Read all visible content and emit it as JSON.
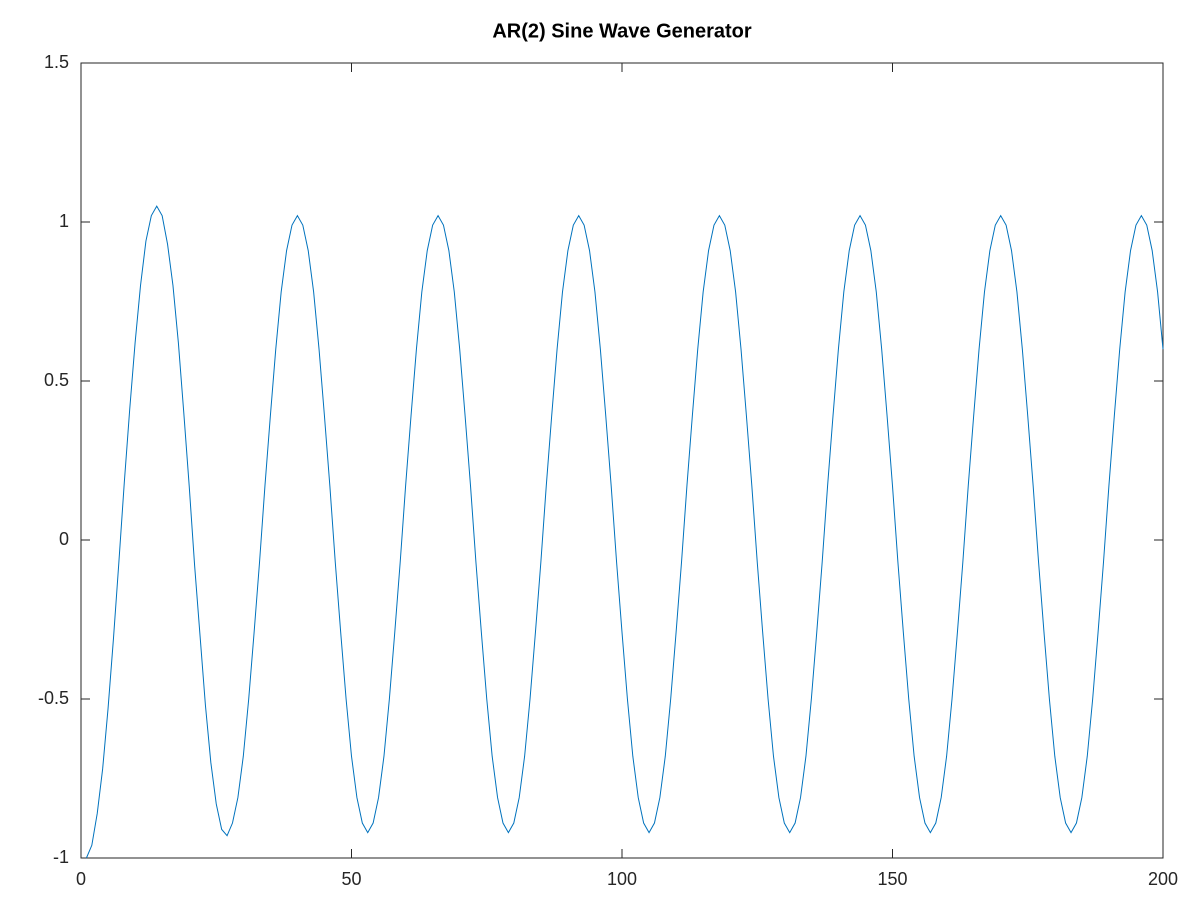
{
  "chart_data": {
    "type": "line",
    "title": "AR(2) Sine Wave Generator",
    "x": [
      1,
      2,
      3,
      4,
      5,
      6,
      7,
      8,
      9,
      10,
      11,
      12,
      13,
      14,
      15,
      16,
      17,
      18,
      19,
      20,
      21,
      22,
      23,
      24,
      25,
      26,
      27,
      28,
      29,
      30,
      31,
      32,
      33,
      34,
      35,
      36,
      37,
      38,
      39,
      40,
      41,
      42,
      43,
      44,
      45,
      46,
      47,
      48,
      49,
      50,
      51,
      52,
      53,
      54,
      55,
      56,
      57,
      58,
      59,
      60,
      61,
      62,
      63,
      64,
      65,
      66,
      67,
      68,
      69,
      70,
      71,
      72,
      73,
      74,
      75,
      76,
      77,
      78,
      79,
      80,
      81,
      82,
      83,
      84,
      85,
      86,
      87,
      88,
      89,
      90,
      91,
      92,
      93,
      94,
      95,
      96,
      97,
      98,
      99,
      100,
      101,
      102,
      103,
      104,
      105,
      106,
      107,
      108,
      109,
      110,
      111,
      112,
      113,
      114,
      115,
      116,
      117,
      118,
      119,
      120,
      121,
      122,
      123,
      124,
      125,
      126,
      127,
      128,
      129,
      130,
      131,
      132,
      133,
      134,
      135,
      136,
      137,
      138,
      139,
      140,
      141,
      142,
      143,
      144,
      145,
      146,
      147,
      148,
      149,
      150,
      151,
      152,
      153,
      154,
      155,
      156,
      157,
      158,
      159,
      160,
      161,
      162,
      163,
      164,
      165,
      166,
      167,
      168,
      169,
      170,
      171,
      172,
      173,
      174,
      175,
      176,
      177,
      178,
      179,
      180,
      181,
      182,
      183,
      184,
      185,
      186,
      187,
      188,
      189,
      190,
      191,
      192,
      193,
      194,
      195,
      196,
      197,
      198,
      199,
      200
    ],
    "values": [
      -1,
      -0.96,
      -0.86,
      -0.72,
      -0.53,
      -0.31,
      -0.07,
      0.18,
      0.41,
      0.62,
      0.8,
      0.94,
      1.02,
      1.05,
      1.02,
      0.93,
      0.8,
      0.62,
      0.4,
      0.17,
      -0.08,
      -0.3,
      -0.52,
      -0.7,
      -0.83,
      -0.91,
      -0.93,
      -0.89,
      -0.81,
      -0.68,
      -0.5,
      -0.29,
      -0.07,
      0.17,
      0.39,
      0.6,
      0.78,
      0.91,
      0.99,
      1.02,
      0.99,
      0.91,
      0.78,
      0.6,
      0.39,
      0.17,
      -0.07,
      -0.29,
      -0.5,
      -0.68,
      -0.81,
      -0.89,
      -0.92,
      -0.89,
      -0.81,
      -0.68,
      -0.5,
      -0.29,
      -0.07,
      0.17,
      0.39,
      0.6,
      0.78,
      0.91,
      0.99,
      1.02,
      0.99,
      0.91,
      0.78,
      0.6,
      0.39,
      0.17,
      -0.07,
      -0.29,
      -0.5,
      -0.68,
      -0.81,
      -0.89,
      -0.92,
      -0.89,
      -0.81,
      -0.68,
      -0.5,
      -0.29,
      -0.07,
      0.17,
      0.39,
      0.6,
      0.78,
      0.91,
      0.99,
      1.02,
      0.99,
      0.91,
      0.78,
      0.6,
      0.39,
      0.17,
      -0.07,
      -0.29,
      -0.5,
      -0.68,
      -0.81,
      -0.89,
      -0.92,
      -0.89,
      -0.81,
      -0.68,
      -0.5,
      -0.29,
      -0.07,
      0.17,
      0.39,
      0.6,
      0.78,
      0.91,
      0.99,
      1.02,
      0.99,
      0.91,
      0.78,
      0.6,
      0.39,
      0.17,
      -0.07,
      -0.29,
      -0.5,
      -0.68,
      -0.81,
      -0.89,
      -0.92,
      -0.89,
      -0.81,
      -0.68,
      -0.5,
      -0.29,
      -0.07,
      0.17,
      0.39,
      0.6,
      0.78,
      0.91,
      0.99,
      1.02,
      0.99,
      0.91,
      0.78,
      0.6,
      0.39,
      0.17,
      -0.07,
      -0.29,
      -0.5,
      -0.68,
      -0.81,
      -0.89,
      -0.92,
      -0.89,
      -0.81,
      -0.68,
      -0.5,
      -0.29,
      -0.07,
      0.17,
      0.39,
      0.6,
      0.78,
      0.91,
      0.99,
      1.02,
      0.99,
      0.91,
      0.78,
      0.6,
      0.39,
      0.17,
      -0.07,
      -0.29,
      -0.5,
      -0.68,
      -0.81,
      -0.89,
      -0.92,
      -0.89,
      -0.81,
      -0.68,
      -0.5,
      -0.29,
      -0.07,
      0.17,
      0.39,
      0.6,
      0.78,
      0.91,
      0.99,
      1.02,
      0.99,
      0.91,
      0.78,
      0.6
    ],
    "color": "#0072bd",
    "xlim": [
      0,
      200
    ],
    "xticks": [
      0,
      50,
      100,
      150,
      200
    ],
    "ylim": [
      -1,
      1.5
    ],
    "yticks": [
      -1,
      -0.5,
      0,
      0.5,
      1,
      1.5
    ],
    "grid": false
  }
}
